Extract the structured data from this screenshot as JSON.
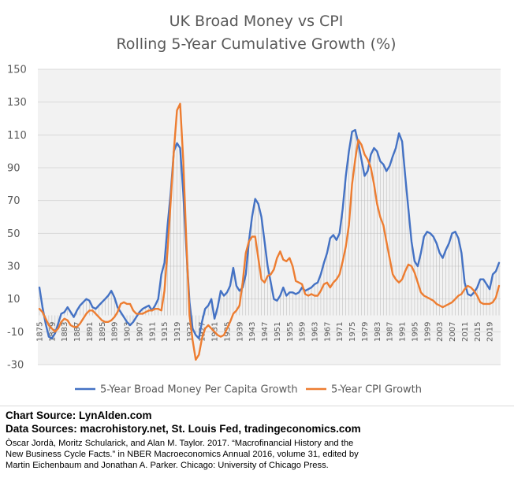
{
  "chart_data": {
    "type": "line",
    "title": [
      "UK Broad Money vs CPI",
      "Rolling 5-Year Cumulative Growth (%)"
    ],
    "ylim": [
      -30,
      150
    ],
    "yticks": [
      150,
      130,
      110,
      90,
      70,
      50,
      30,
      10,
      -10,
      -30
    ],
    "x_tick_labels": [
      "1875",
      "1879",
      "1883",
      "1887",
      "1891",
      "1895",
      "1899",
      "1903",
      "1907",
      "1911",
      "1915",
      "1919",
      "1923",
      "1927",
      "1931",
      "1935",
      "1939",
      "1943",
      "1947",
      "1951",
      "1955",
      "1959",
      "1963",
      "1967",
      "1971",
      "1975",
      "1979",
      "1983",
      "1987",
      "1991",
      "1995",
      "1999",
      "2003",
      "2007",
      "2011",
      "2015",
      "2019"
    ],
    "grid": true,
    "legend_position": "bottom",
    "colors": {
      "money": "#4472C4",
      "cpi": "#ED7D31",
      "drop_lines": "#bfbfbf"
    },
    "series": [
      {
        "name": "5-Year Broad Money Per Capita Growth",
        "key": "money",
        "points": [
          [
            1875,
            17
          ],
          [
            1876,
            5
          ],
          [
            1877,
            -5
          ],
          [
            1878,
            -13
          ],
          [
            1879,
            -14
          ],
          [
            1880,
            -11
          ],
          [
            1881,
            -5
          ],
          [
            1882,
            1
          ],
          [
            1883,
            2
          ],
          [
            1884,
            5
          ],
          [
            1885,
            2
          ],
          [
            1886,
            -1
          ],
          [
            1887,
            3
          ],
          [
            1888,
            6
          ],
          [
            1889,
            8
          ],
          [
            1890,
            10
          ],
          [
            1891,
            9
          ],
          [
            1892,
            5
          ],
          [
            1893,
            4
          ],
          [
            1894,
            6
          ],
          [
            1895,
            8
          ],
          [
            1896,
            10
          ],
          [
            1897,
            12
          ],
          [
            1898,
            15
          ],
          [
            1899,
            11
          ],
          [
            1900,
            5
          ],
          [
            1901,
            2
          ],
          [
            1902,
            -1
          ],
          [
            1903,
            -4
          ],
          [
            1904,
            -6
          ],
          [
            1905,
            -4
          ],
          [
            1906,
            -1
          ],
          [
            1907,
            2
          ],
          [
            1908,
            4
          ],
          [
            1909,
            5
          ],
          [
            1910,
            6
          ],
          [
            1911,
            3
          ],
          [
            1912,
            6
          ],
          [
            1913,
            10
          ],
          [
            1914,
            25
          ],
          [
            1915,
            32
          ],
          [
            1916,
            55
          ],
          [
            1917,
            75
          ],
          [
            1918,
            100
          ],
          [
            1919,
            105
          ],
          [
            1920,
            102
          ],
          [
            1921,
            75
          ],
          [
            1922,
            40
          ],
          [
            1923,
            8
          ],
          [
            1924,
            -8
          ],
          [
            1925,
            -12
          ],
          [
            1926,
            -14
          ],
          [
            1927,
            -4
          ],
          [
            1928,
            4
          ],
          [
            1929,
            6
          ],
          [
            1930,
            10
          ],
          [
            1931,
            -2
          ],
          [
            1932,
            5
          ],
          [
            1933,
            15
          ],
          [
            1934,
            12
          ],
          [
            1935,
            14
          ],
          [
            1936,
            18
          ],
          [
            1937,
            29
          ],
          [
            1938,
            18
          ],
          [
            1939,
            15
          ],
          [
            1940,
            17
          ],
          [
            1941,
            25
          ],
          [
            1942,
            45
          ],
          [
            1943,
            60
          ],
          [
            1944,
            71
          ],
          [
            1945,
            68
          ],
          [
            1946,
            60
          ],
          [
            1947,
            45
          ],
          [
            1948,
            30
          ],
          [
            1949,
            20
          ],
          [
            1950,
            10
          ],
          [
            1951,
            9
          ],
          [
            1952,
            12
          ],
          [
            1953,
            17
          ],
          [
            1954,
            12
          ],
          [
            1955,
            14
          ],
          [
            1956,
            14
          ],
          [
            1957,
            13
          ],
          [
            1958,
            14
          ],
          [
            1959,
            17
          ],
          [
            1960,
            15
          ],
          [
            1961,
            16
          ],
          [
            1962,
            17
          ],
          [
            1963,
            19
          ],
          [
            1964,
            20
          ],
          [
            1965,
            25
          ],
          [
            1966,
            32
          ],
          [
            1967,
            38
          ],
          [
            1968,
            47
          ],
          [
            1969,
            49
          ],
          [
            1970,
            46
          ],
          [
            1971,
            50
          ],
          [
            1972,
            65
          ],
          [
            1973,
            85
          ],
          [
            1974,
            100
          ],
          [
            1975,
            112
          ],
          [
            1976,
            113
          ],
          [
            1977,
            105
          ],
          [
            1978,
            95
          ],
          [
            1979,
            85
          ],
          [
            1980,
            88
          ],
          [
            1981,
            98
          ],
          [
            1982,
            102
          ],
          [
            1983,
            100
          ],
          [
            1984,
            94
          ],
          [
            1985,
            92
          ],
          [
            1986,
            88
          ],
          [
            1987,
            91
          ],
          [
            1988,
            97
          ],
          [
            1989,
            102
          ],
          [
            1990,
            111
          ],
          [
            1991,
            106
          ],
          [
            1992,
            85
          ],
          [
            1993,
            65
          ],
          [
            1994,
            45
          ],
          [
            1995,
            33
          ],
          [
            1996,
            30
          ],
          [
            1997,
            38
          ],
          [
            1998,
            48
          ],
          [
            1999,
            51
          ],
          [
            2000,
            50
          ],
          [
            2001,
            48
          ],
          [
            2002,
            44
          ],
          [
            2003,
            38
          ],
          [
            2004,
            35
          ],
          [
            2005,
            40
          ],
          [
            2006,
            44
          ],
          [
            2007,
            50
          ],
          [
            2008,
            51
          ],
          [
            2009,
            47
          ],
          [
            2010,
            38
          ],
          [
            2011,
            20
          ],
          [
            2012,
            13
          ],
          [
            2013,
            12
          ],
          [
            2014,
            14
          ],
          [
            2015,
            17
          ],
          [
            2016,
            22
          ],
          [
            2017,
            22
          ],
          [
            2018,
            19
          ],
          [
            2019,
            16
          ],
          [
            2020,
            25
          ],
          [
            2021,
            27
          ],
          [
            2022,
            32
          ]
        ]
      },
      {
        "name": "5-Year CPI Growth",
        "key": "cpi",
        "points": [
          [
            1875,
            4
          ],
          [
            1876,
            2
          ],
          [
            1877,
            -2
          ],
          [
            1878,
            -6
          ],
          [
            1879,
            -8
          ],
          [
            1880,
            -10
          ],
          [
            1881,
            -8
          ],
          [
            1882,
            -4
          ],
          [
            1883,
            -2
          ],
          [
            1884,
            -3
          ],
          [
            1885,
            -6
          ],
          [
            1886,
            -7
          ],
          [
            1887,
            -7
          ],
          [
            1888,
            -5
          ],
          [
            1889,
            -2
          ],
          [
            1890,
            1
          ],
          [
            1891,
            3
          ],
          [
            1892,
            3
          ],
          [
            1893,
            1
          ],
          [
            1894,
            -1
          ],
          [
            1895,
            -3
          ],
          [
            1896,
            -4
          ],
          [
            1897,
            -4
          ],
          [
            1898,
            -3
          ],
          [
            1899,
            -1
          ],
          [
            1900,
            2
          ],
          [
            1901,
            7
          ],
          [
            1902,
            8
          ],
          [
            1903,
            7
          ],
          [
            1904,
            7
          ],
          [
            1905,
            3
          ],
          [
            1906,
            1
          ],
          [
            1907,
            1
          ],
          [
            1908,
            1
          ],
          [
            1909,
            2
          ],
          [
            1910,
            3
          ],
          [
            1911,
            3
          ],
          [
            1912,
            4
          ],
          [
            1913,
            4
          ],
          [
            1914,
            3
          ],
          [
            1915,
            15
          ],
          [
            1916,
            40
          ],
          [
            1917,
            70
          ],
          [
            1918,
            100
          ],
          [
            1919,
            125
          ],
          [
            1920,
            129
          ],
          [
            1921,
            95
          ],
          [
            1922,
            45
          ],
          [
            1923,
            0
          ],
          [
            1924,
            -15
          ],
          [
            1925,
            -27
          ],
          [
            1926,
            -24
          ],
          [
            1927,
            -14
          ],
          [
            1928,
            -8
          ],
          [
            1929,
            -6
          ],
          [
            1930,
            -8
          ],
          [
            1931,
            -10
          ],
          [
            1932,
            -12
          ],
          [
            1933,
            -13
          ],
          [
            1934,
            -12
          ],
          [
            1935,
            -8
          ],
          [
            1936,
            -4
          ],
          [
            1937,
            1
          ],
          [
            1938,
            3
          ],
          [
            1939,
            6
          ],
          [
            1940,
            20
          ],
          [
            1941,
            38
          ],
          [
            1942,
            45
          ],
          [
            1943,
            48
          ],
          [
            1944,
            48
          ],
          [
            1945,
            35
          ],
          [
            1946,
            22
          ],
          [
            1947,
            20
          ],
          [
            1948,
            24
          ],
          [
            1949,
            25
          ],
          [
            1950,
            28
          ],
          [
            1951,
            35
          ],
          [
            1952,
            39
          ],
          [
            1953,
            34
          ],
          [
            1954,
            33
          ],
          [
            1955,
            35
          ],
          [
            1956,
            30
          ],
          [
            1957,
            21
          ],
          [
            1958,
            20
          ],
          [
            1959,
            19
          ],
          [
            1960,
            13
          ],
          [
            1961,
            12
          ],
          [
            1962,
            13
          ],
          [
            1963,
            12
          ],
          [
            1964,
            12
          ],
          [
            1965,
            15
          ],
          [
            1966,
            19
          ],
          [
            1967,
            20
          ],
          [
            1968,
            17
          ],
          [
            1969,
            20
          ],
          [
            1970,
            22
          ],
          [
            1971,
            25
          ],
          [
            1972,
            33
          ],
          [
            1973,
            42
          ],
          [
            1974,
            55
          ],
          [
            1975,
            80
          ],
          [
            1976,
            95
          ],
          [
            1977,
            107
          ],
          [
            1978,
            104
          ],
          [
            1979,
            98
          ],
          [
            1980,
            95
          ],
          [
            1981,
            90
          ],
          [
            1982,
            80
          ],
          [
            1983,
            68
          ],
          [
            1984,
            60
          ],
          [
            1985,
            55
          ],
          [
            1986,
            45
          ],
          [
            1987,
            35
          ],
          [
            1988,
            25
          ],
          [
            1989,
            22
          ],
          [
            1990,
            20
          ],
          [
            1991,
            22
          ],
          [
            1992,
            27
          ],
          [
            1993,
            31
          ],
          [
            1994,
            30
          ],
          [
            1995,
            26
          ],
          [
            1996,
            20
          ],
          [
            1997,
            14
          ],
          [
            1998,
            12
          ],
          [
            1999,
            11
          ],
          [
            2000,
            10
          ],
          [
            2001,
            9
          ],
          [
            2002,
            7
          ],
          [
            2003,
            6
          ],
          [
            2004,
            5
          ],
          [
            2005,
            6
          ],
          [
            2006,
            7
          ],
          [
            2007,
            8
          ],
          [
            2008,
            10
          ],
          [
            2009,
            12
          ],
          [
            2010,
            13
          ],
          [
            2011,
            16
          ],
          [
            2012,
            18
          ],
          [
            2013,
            17
          ],
          [
            2014,
            15
          ],
          [
            2015,
            12
          ],
          [
            2016,
            8
          ],
          [
            2017,
            7
          ],
          [
            2018,
            7
          ],
          [
            2019,
            7
          ],
          [
            2020,
            8
          ],
          [
            2021,
            11
          ],
          [
            2022,
            18
          ]
        ]
      }
    ]
  },
  "sources": {
    "chart_source": "Chart Source: LynAlden.com",
    "data_sources": "Data Sources: macrohistory.net, St. Louis Fed, tradingeconomics.com",
    "citation_1": "Òscar Jordà, Moritz Schularick, and Alan M. Taylor. 2017. “Macrofinancial History and the",
    "citation_2": "New Business Cycle Facts.” in NBER Macroeconomics Annual 2016, volume 31, edited by",
    "citation_3": "Martin Eichenbaum and Jonathan A. Parker. Chicago: University of Chicago Press."
  }
}
